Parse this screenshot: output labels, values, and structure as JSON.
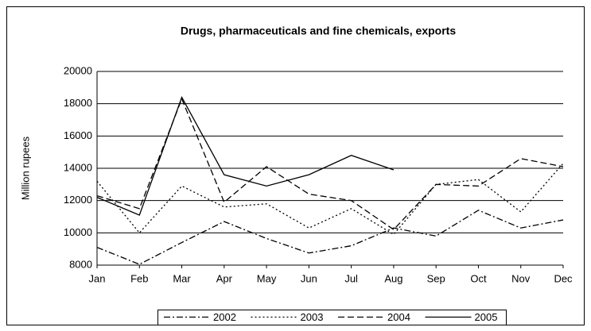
{
  "chart_data": {
    "type": "line",
    "title": "Drugs, pharmaceuticals and fine chemicals, exports",
    "y_label": "Million rupees",
    "categories": [
      "Jan",
      "Feb",
      "Mar",
      "Apr",
      "May",
      "Jun",
      "Jul",
      "Aug",
      "Sep",
      "Oct",
      "Nov",
      "Dec"
    ],
    "series": [
      {
        "name": "2002",
        "color": "#000000",
        "dash": "dashdot",
        "values": [
          9100,
          8050,
          9400,
          10700,
          9650,
          8750,
          9200,
          10300,
          9800,
          11400,
          10300,
          10800
        ]
      },
      {
        "name": "2003",
        "color": "#000000",
        "dash": "dotted",
        "values": [
          13200,
          10000,
          12900,
          11600,
          11800,
          10300,
          11500,
          9900,
          13000,
          13300,
          11300,
          14300
        ]
      },
      {
        "name": "2004",
        "color": "#000000",
        "dash": "dashed",
        "values": [
          12300,
          11500,
          18300,
          11900,
          14100,
          12400,
          12000,
          10200,
          13000,
          12900,
          14600,
          14100
        ]
      },
      {
        "name": "2005",
        "color": "#000000",
        "dash": "solid",
        "values": [
          12200,
          11100,
          18400,
          13600,
          12900,
          13600,
          14800,
          13900,
          null,
          null,
          null,
          null
        ]
      }
    ],
    "ylim": [
      8000,
      20000
    ],
    "yticks": [
      8000,
      10000,
      12000,
      14000,
      16000,
      18000,
      20000
    ],
    "grid": true,
    "legend": "bottom"
  }
}
